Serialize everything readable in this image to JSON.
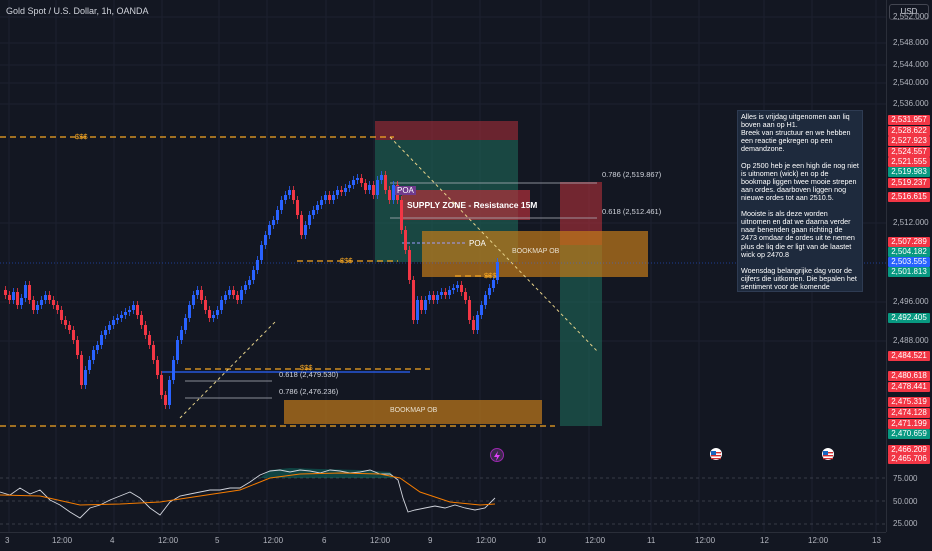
{
  "header": {
    "symbol_title": "Gold Spot / U.S. Dollar, 1h, OANDA",
    "currency_button": "USD"
  },
  "price_axis": {
    "ticks": [
      "2,552.000",
      "2,548.000",
      "2,544.000",
      "2,540.000",
      "2,536.000",
      "2,512.000",
      "2,496.000",
      "2,488.000"
    ],
    "tags": [
      {
        "text": "2,531.957",
        "color": "#f23645"
      },
      {
        "text": "2,528.622",
        "color": "#f23645"
      },
      {
        "text": "2,527.923",
        "color": "#f23645"
      },
      {
        "text": "2,524.557",
        "color": "#f23645"
      },
      {
        "text": "2,521.555",
        "color": "#f23645"
      },
      {
        "text": "2,519.983",
        "color": "#089981"
      },
      {
        "text": "2,519.237",
        "color": "#f23645"
      },
      {
        "text": "2,516.615",
        "color": "#f23645"
      },
      {
        "text": "2,507.289",
        "color": "#f23645"
      },
      {
        "text": "2,504.182",
        "color": "#089981"
      },
      {
        "text": "2,503.555",
        "color": "#2962ff"
      },
      {
        "text": "2,501.813",
        "color": "#089981"
      },
      {
        "text": "2,492.405",
        "color": "#089981"
      },
      {
        "text": "2,484.521",
        "color": "#f23645"
      },
      {
        "text": "2,480.618",
        "color": "#f23645"
      },
      {
        "text": "2,478.441",
        "color": "#f23645"
      },
      {
        "text": "2,475.319",
        "color": "#f23645"
      },
      {
        "text": "2,474.128",
        "color": "#f23645"
      },
      {
        "text": "2,471.199",
        "color": "#f23645"
      },
      {
        "text": "2,470.659",
        "color": "#089981"
      },
      {
        "text": "2,466.209",
        "color": "#f23645"
      },
      {
        "text": "2,465.706",
        "color": "#f23645"
      }
    ]
  },
  "time_axis": [
    "3",
    "12:00",
    "4",
    "12:00",
    "5",
    "12:00",
    "6",
    "12:00",
    "9",
    "12:00",
    "10",
    "12:00",
    "11",
    "12:00",
    "12",
    "12:00",
    "13"
  ],
  "drawings": {
    "liq_top": "$$$",
    "liq_mid": "$$$",
    "liq_right": "$$$",
    "liq_low": "$$$",
    "poa_1": "POA",
    "poa_2": "POA",
    "supply_zone": "SUPPLY ZONE - Resistance 15M",
    "bookmap_ob_top": "BOOKMAP OB",
    "bookmap_ob_bottom": "BOOKMAP OB",
    "fib_786_top": "0.786 (2,519.867)",
    "fib_618_top": "0.618 (2,512.461)",
    "fib_618_bottom": "0.618 (2,479.530)",
    "fib_786_bottom": "0.786 (2,476.236)"
  },
  "note_text": "Alles is vrijdag uitgenomen aan liq boven aan op H1.\nBreek van structuur en we hebben een reactie gekregen op een demandzone.\n\nOp 2500 heb je een high die nog niet is uitnomen (wick) en op de bookmap liggen twee mooie strepen aan ordes. daarboven liggen nog nieuwe ordes tot aan 2510.5.\n\nMooiste is als deze worden uitnomen en dat we daarna verder naar benenden gaan richting de 2473 omdaar de ordes uit te nemen plus de liq die er ligt van de laastet wick op 2470.8\n\nWoensdag belangrijke dag voor de cijfers die uitkomen. Die bepalen het sentiment voor de komende maanden voor beleggers.",
  "oscillator": {
    "levels": [
      "75.000",
      "50.000",
      "25.000"
    ]
  },
  "colors": {
    "up": "#2962ff",
    "down": "#f23645",
    "accent_orange": "#f5a623",
    "background": "#131722"
  }
}
